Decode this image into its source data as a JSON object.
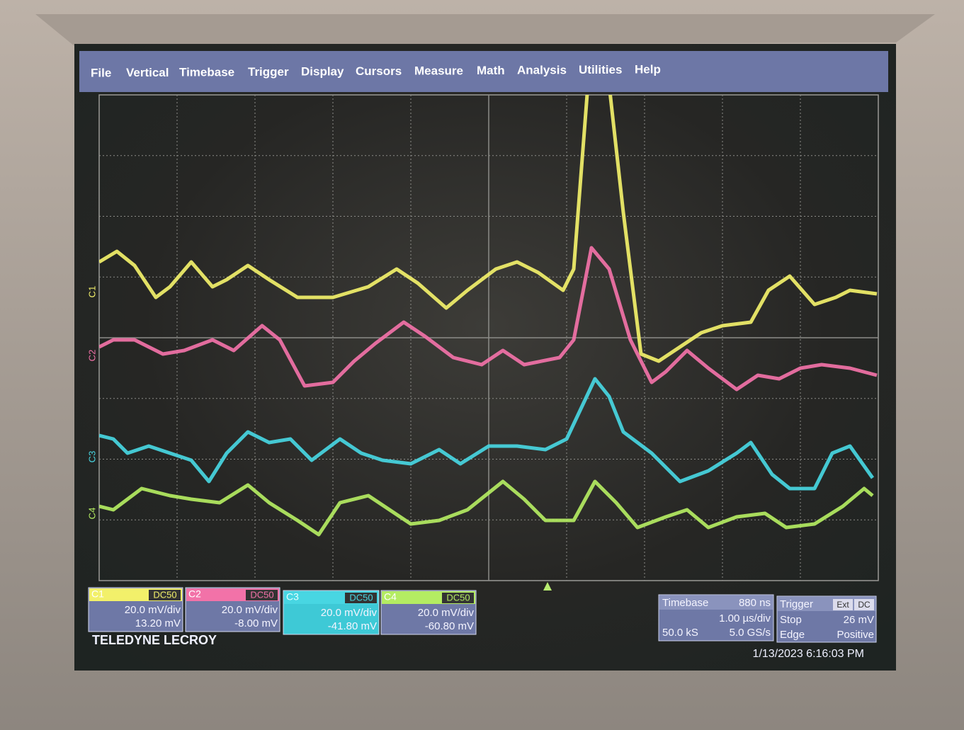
{
  "menu": [
    "File",
    "Vertical",
    "Timebase",
    "Trigger",
    "Display",
    "Cursors",
    "Measure",
    "Math",
    "Analysis",
    "Utilities",
    "Help"
  ],
  "trace_labels": [
    "C1",
    "C2",
    "C3",
    "C4"
  ],
  "channels": [
    {
      "name": "C1",
      "coupling": "DC50",
      "scale": "20.0 mV/div",
      "offset": "13.20 mV"
    },
    {
      "name": "C2",
      "coupling": "DC50",
      "scale": "20.0 mV/div",
      "offset": "-8.00 mV"
    },
    {
      "name": "C3",
      "coupling": "DC50",
      "scale": "20.0 mV/div",
      "offset": "-41.80 mV"
    },
    {
      "name": "C4",
      "coupling": "DC50",
      "scale": "20.0 mV/div",
      "offset": "-60.80 mV"
    }
  ],
  "brand": "TELEDYNE LECROY",
  "timebase": {
    "title": "Timebase",
    "delay": "880 ns",
    "scale": "1.00 µs/div",
    "samples": "50.0 kS",
    "rate": "5.0 GS/s"
  },
  "trigger": {
    "title": "Trigger",
    "source": "Ext",
    "coupling": "DC",
    "mode": "Stop",
    "level": "26 mV",
    "type": "Edge",
    "slope": "Positive"
  },
  "timestamp": "1/13/2023 6:16:03 PM"
}
